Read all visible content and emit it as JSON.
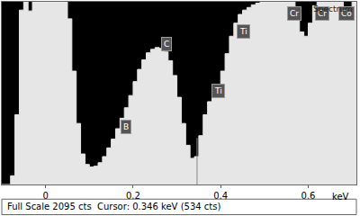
{
  "chart_data": {
    "type": "area",
    "line_style": "step",
    "color": "#e6e6e6",
    "x": [
      -0.1,
      -0.09,
      -0.08,
      -0.07,
      -0.06,
      -0.05,
      -0.04,
      -0.03,
      -0.02,
      -0.01,
      0.0,
      0.01,
      0.02,
      0.03,
      0.04,
      0.05,
      0.06,
      0.07,
      0.08,
      0.09,
      0.1,
      0.11,
      0.12,
      0.13,
      0.14,
      0.15,
      0.16,
      0.17,
      0.18,
      0.19,
      0.2,
      0.21,
      0.22,
      0.23,
      0.24,
      0.25,
      0.26,
      0.27,
      0.28,
      0.29,
      0.3,
      0.31,
      0.32,
      0.33,
      0.34,
      0.35,
      0.36,
      0.37,
      0.38,
      0.39,
      0.4,
      0.41,
      0.42,
      0.43,
      0.44,
      0.45,
      0.46,
      0.47,
      0.48,
      0.49,
      0.5,
      0.51,
      0.52,
      0.53,
      0.54,
      0.55,
      0.56,
      0.57,
      0.58,
      0.59,
      0.6,
      0.61,
      0.62,
      0.63,
      0.64,
      0.65,
      0.66,
      0.67,
      0.68,
      0.69,
      0.7,
      0.71
    ],
    "values": [
      0,
      0,
      100,
      800,
      2000,
      2095,
      1990,
      2095,
      2095,
      2095,
      2095,
      2095,
      2095,
      2095,
      2095,
      1900,
      1300,
      700,
      350,
      230,
      200,
      210,
      250,
      320,
      420,
      520,
      640,
      760,
      880,
      1020,
      1180,
      1320,
      1430,
      1510,
      1550,
      1570,
      1560,
      1520,
      1420,
      1250,
      1000,
      700,
      450,
      300,
      320,
      560,
      800,
      950,
      1050,
      1150,
      1300,
      1500,
      1700,
      1850,
      1950,
      2000,
      2030,
      2060,
      2080,
      2095,
      2095,
      2095,
      2095,
      2095,
      2095,
      2095,
      2095,
      2000,
      1750,
      1700,
      1850,
      2050,
      2095,
      2095,
      2095,
      2095,
      2095,
      2095,
      1950,
      2000,
      2095,
      2095
    ],
    "xlim": [
      -0.1,
      0.71
    ],
    "xticks": [
      0,
      0.2,
      0.4,
      0.6
    ],
    "ylim": [
      0,
      2095
    ],
    "tick_labels": "x",
    "grid": false,
    "annotations": [
      {
        "text": "B",
        "x": 0.183,
        "y": 665
      },
      {
        "text": "C",
        "x": 0.277,
        "y": 1615
      },
      {
        "text": "Ti",
        "x": 0.395,
        "y": 1075
      },
      {
        "text": "Ti",
        "x": 0.452,
        "y": 1750
      },
      {
        "text": "Cr",
        "x": 0.569,
        "y": 1960
      },
      {
        "text": "Cr",
        "x": 0.631,
        "y": 1960
      },
      {
        "text": "Co",
        "x": 0.688,
        "y": 1960
      }
    ],
    "spectrum_label": "Spectrum",
    "cursor": {
      "x": 0.346,
      "y": 534
    },
    "footer": "Full Scale 2095 cts  Cursor: 0.346 keV (534 cts)",
    "xlabel": "keV"
  }
}
